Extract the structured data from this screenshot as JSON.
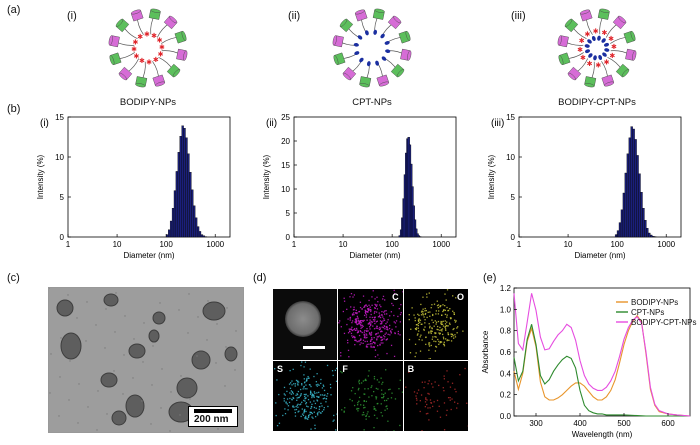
{
  "panel_labels": {
    "a": "(a)",
    "b": "(b)",
    "c": "(c)",
    "d": "(d)",
    "e": "(e)"
  },
  "nanoparticles": [
    {
      "roman": "(i)",
      "name": "BODIPY-NPs"
    },
    {
      "roman": "(ii)",
      "name": "CPT-NPs"
    },
    {
      "roman": "(iii)",
      "name": "BODIPY-CPT-NPs"
    }
  ],
  "dls_axis": {
    "xlabel": "Diameter (nm)",
    "ylabel": "Intensity (%)",
    "xticks": [
      "1",
      "10",
      "100",
      "1000"
    ]
  },
  "tem": {
    "scale_label": "200 nm"
  },
  "edx": {
    "elements": [
      "C",
      "O",
      "S",
      "F",
      "B"
    ],
    "colors": {
      "C": "#c51bc6",
      "O": "#c8c63a",
      "S": "#3ab7cc",
      "F": "#2f9a34",
      "B": "#b02a2a"
    }
  },
  "chart_data": [
    {
      "type": "bar",
      "title": "(i)",
      "xlabel": "Diameter (nm)",
      "ylabel": "Intensity (%)",
      "xscale": "log",
      "xlim": [
        1,
        2000
      ],
      "ylim": [
        0,
        15
      ],
      "yticks": [
        0,
        5,
        10,
        15
      ],
      "x": [
        105,
        115,
        126,
        138,
        151,
        165,
        181,
        198,
        217,
        237,
        260,
        285,
        312,
        341,
        373,
        409,
        448,
        490,
        537,
        588,
        644
      ],
      "values": [
        0.3,
        0.9,
        2.0,
        3.6,
        5.8,
        8.2,
        10.6,
        12.6,
        13.9,
        13.6,
        12.4,
        10.4,
        8.1,
        5.9,
        3.9,
        2.4,
        1.3,
        0.7,
        0.3,
        0.15,
        0.05
      ]
    },
    {
      "type": "bar",
      "title": "(ii)",
      "xlabel": "Diameter (nm)",
      "ylabel": "Intensity (%)",
      "xscale": "log",
      "xlim": [
        1,
        2000
      ],
      "ylim": [
        0,
        25
      ],
      "yticks": [
        0,
        5,
        10,
        15,
        20,
        25
      ],
      "x": [
        143,
        152,
        161,
        171,
        182,
        193,
        205,
        218,
        231,
        245,
        260,
        276,
        293,
        311,
        330,
        350,
        372
      ],
      "values": [
        0.3,
        1.5,
        4.0,
        8.0,
        13.0,
        17.5,
        20.5,
        20.8,
        19.2,
        15.2,
        10.5,
        6.5,
        3.6,
        1.7,
        0.7,
        0.3,
        0.1
      ]
    },
    {
      "type": "bar",
      "title": "(iii)",
      "xlabel": "Diameter (nm)",
      "ylabel": "Intensity (%)",
      "xscale": "log",
      "xlim": [
        1,
        2000
      ],
      "ylim": [
        0,
        15
      ],
      "yticks": [
        0,
        5,
        10,
        15
      ],
      "x": [
        95,
        104,
        114,
        125,
        137,
        150,
        165,
        181,
        198,
        217,
        238,
        261,
        286,
        314,
        344,
        377,
        413,
        453,
        497,
        545,
        597
      ],
      "values": [
        0.3,
        0.8,
        1.8,
        3.4,
        5.5,
        8.0,
        10.4,
        12.4,
        13.8,
        13.5,
        12.2,
        10.2,
        7.9,
        5.6,
        3.6,
        2.1,
        1.1,
        0.5,
        0.25,
        0.1,
        0.05
      ]
    },
    {
      "type": "line",
      "title": "",
      "xlabel": "Wavelength (nm)",
      "ylabel": "Absorbance",
      "xlim": [
        250,
        650
      ],
      "ylim": [
        0,
        1.2
      ],
      "xticks": [
        300,
        400,
        500,
        600
      ],
      "yticks": [
        0,
        0.2,
        0.4,
        0.6,
        0.8,
        1.0,
        1.2
      ],
      "series": [
        {
          "name": "BODIPY-NPs",
          "color": "#e8952b",
          "x": [
            250,
            260,
            270,
            280,
            290,
            300,
            310,
            320,
            330,
            340,
            350,
            360,
            370,
            380,
            390,
            400,
            410,
            420,
            430,
            440,
            450,
            460,
            470,
            480,
            490,
            500,
            510,
            520,
            530,
            540,
            550,
            560,
            570,
            580,
            600,
            620,
            650
          ],
          "y": [
            0.42,
            0.25,
            0.4,
            0.7,
            0.82,
            0.65,
            0.32,
            0.18,
            0.15,
            0.15,
            0.17,
            0.2,
            0.24,
            0.28,
            0.31,
            0.31,
            0.28,
            0.23,
            0.18,
            0.15,
            0.15,
            0.18,
            0.24,
            0.34,
            0.5,
            0.67,
            0.8,
            0.89,
            0.94,
            0.88,
            0.58,
            0.25,
            0.1,
            0.04,
            0.02,
            0.01,
            0.0
          ]
        },
        {
          "name": "CPT-NPs",
          "color": "#2e8a2e",
          "x": [
            250,
            260,
            270,
            280,
            290,
            300,
            310,
            320,
            330,
            340,
            350,
            360,
            370,
            380,
            390,
            400,
            410,
            420,
            430,
            440,
            450,
            460,
            480,
            500,
            550,
            600,
            650
          ],
          "y": [
            0.55,
            0.33,
            0.42,
            0.72,
            0.86,
            0.67,
            0.38,
            0.3,
            0.34,
            0.42,
            0.48,
            0.53,
            0.56,
            0.54,
            0.45,
            0.24,
            0.1,
            0.05,
            0.03,
            0.02,
            0.02,
            0.01,
            0.01,
            0.01,
            0.0,
            0.0,
            0.0
          ]
        },
        {
          "name": "BODIPY-CPT-NPs",
          "color": "#e64de0",
          "x": [
            250,
            260,
            270,
            280,
            290,
            300,
            310,
            320,
            330,
            340,
            350,
            360,
            370,
            380,
            390,
            400,
            410,
            420,
            430,
            440,
            450,
            460,
            470,
            480,
            490,
            500,
            510,
            520,
            530,
            540,
            550,
            560,
            570,
            580,
            600,
            620,
            650
          ],
          "y": [
            1.15,
            0.68,
            0.62,
            0.88,
            1.15,
            0.99,
            0.74,
            0.62,
            0.63,
            0.7,
            0.76,
            0.8,
            0.86,
            0.83,
            0.71,
            0.52,
            0.38,
            0.3,
            0.26,
            0.24,
            0.24,
            0.27,
            0.33,
            0.42,
            0.56,
            0.72,
            0.83,
            0.9,
            0.93,
            0.87,
            0.6,
            0.27,
            0.11,
            0.05,
            0.02,
            0.01,
            0.0
          ]
        }
      ]
    }
  ]
}
